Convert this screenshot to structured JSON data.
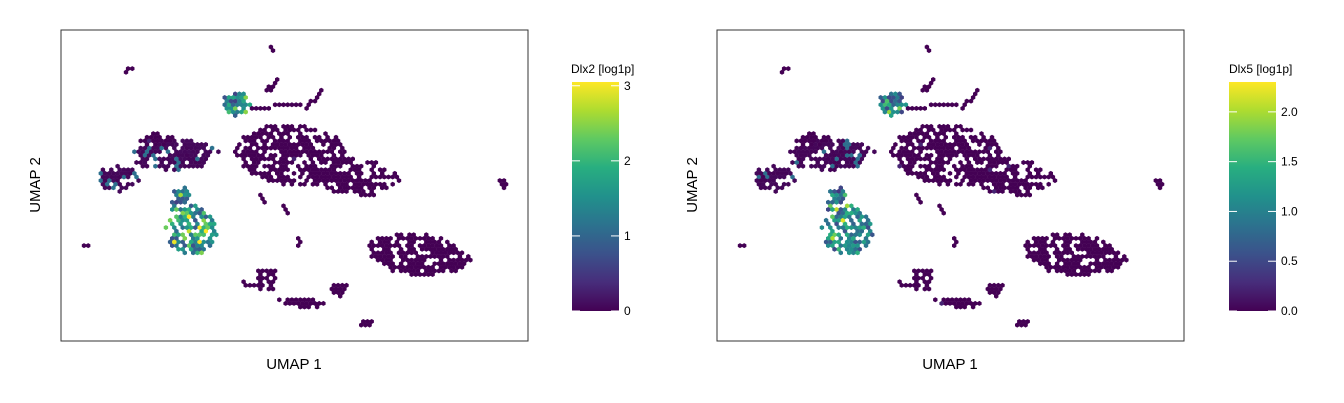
{
  "chart_data": [
    {
      "type": "heatmap",
      "subtype": "hexbin-embedding",
      "xlabel": "UMAP 1",
      "ylabel": "UMAP 2",
      "colorbar": {
        "title": "Dlx2 [log1p]",
        "ticks": [
          "0",
          "1",
          "2",
          "3"
        ],
        "tick_values": [
          0,
          1,
          2,
          3
        ],
        "range": [
          0,
          3.05
        ],
        "colormap": "viridis"
      },
      "high_expression_clusters": [
        "ventral-left-elongated-cluster",
        "top-small-cluster"
      ]
    },
    {
      "type": "heatmap",
      "subtype": "hexbin-embedding",
      "xlabel": "UMAP 1",
      "ylabel": "UMAP 2",
      "colorbar": {
        "title": "Dlx5 [log1p]",
        "ticks": [
          "0.0",
          "0.5",
          "1.0",
          "1.5",
          "2.0"
        ],
        "tick_values": [
          0.0,
          0.5,
          1.0,
          1.5,
          2.0
        ],
        "range": [
          0,
          2.3
        ],
        "colormap": "viridis"
      },
      "high_expression_clusters": [
        "ventral-left-elongated-cluster",
        "top-small-cluster"
      ]
    }
  ]
}
